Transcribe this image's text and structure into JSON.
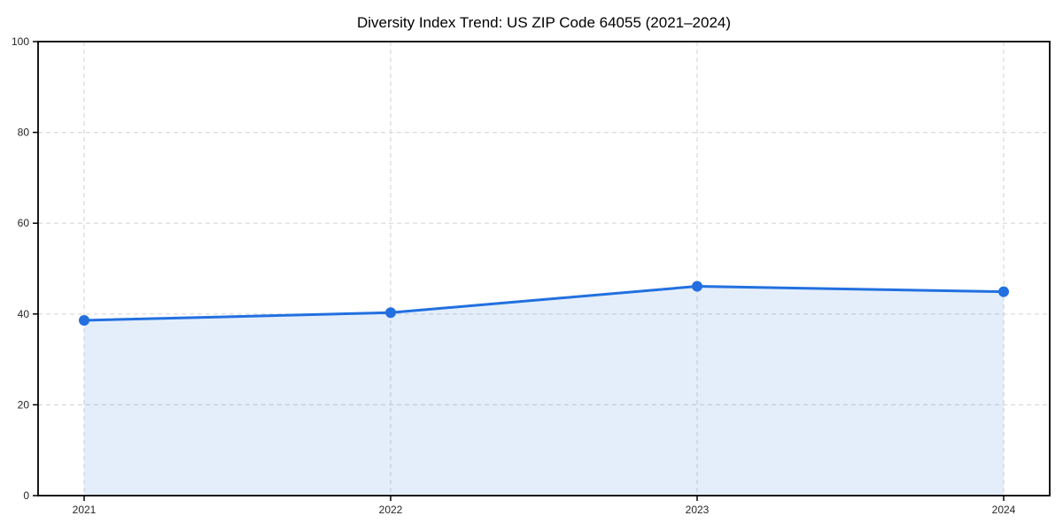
{
  "chart_data": {
    "type": "area",
    "title": "Diversity Index Trend: US ZIP Code 64055 (2021–2024)",
    "categories": [
      "2021",
      "2022",
      "2023",
      "2024"
    ],
    "series": [
      {
        "name": "Diversity Index",
        "values": [
          38.6,
          40.3,
          46.1,
          44.9
        ]
      }
    ],
    "xlabel": "",
    "ylabel": "",
    "ylim": [
      0,
      100
    ],
    "yticks": [
      0,
      20,
      40,
      60,
      80,
      100
    ],
    "grid": "dashed-both-axes",
    "legend_position": "none",
    "colors": {
      "line": "#2270e0",
      "marker": "#2270e0",
      "fill": "#2270e0",
      "fill_opacity": 0.12,
      "grid": "#d9d9d9",
      "spine": "#000000",
      "tick_label": "#262626",
      "title": "#000000",
      "background": "#ffffff"
    }
  }
}
